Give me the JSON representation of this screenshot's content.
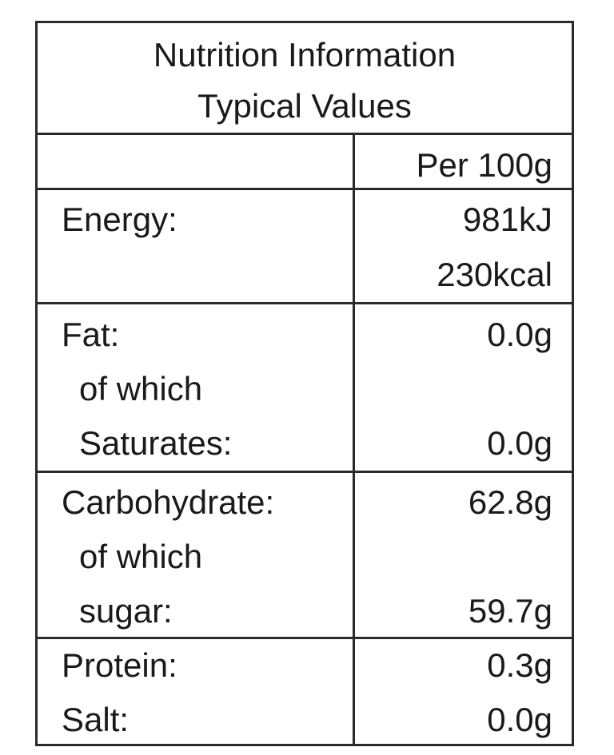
{
  "header": {
    "title_line1": "Nutrition Information",
    "title_line2": "Typical Values"
  },
  "column_header": "Per 100g",
  "rows": [
    {
      "label": "Energy:",
      "values": [
        "981kJ",
        "230kcal"
      ]
    },
    {
      "label": "Fat:",
      "value": "0.0g",
      "sub_label_1": "of which",
      "sub_label_2": "Saturates:",
      "sub_value": "0.0g"
    },
    {
      "label": "Carbohydrate:",
      "value": "62.8g",
      "sub_label_1": "of which",
      "sub_label_2": "sugar:",
      "sub_value": "59.7g"
    },
    {
      "label": "Protein:",
      "value": "0.3g"
    },
    {
      "label": "Salt:",
      "value": "0.0g"
    }
  ]
}
